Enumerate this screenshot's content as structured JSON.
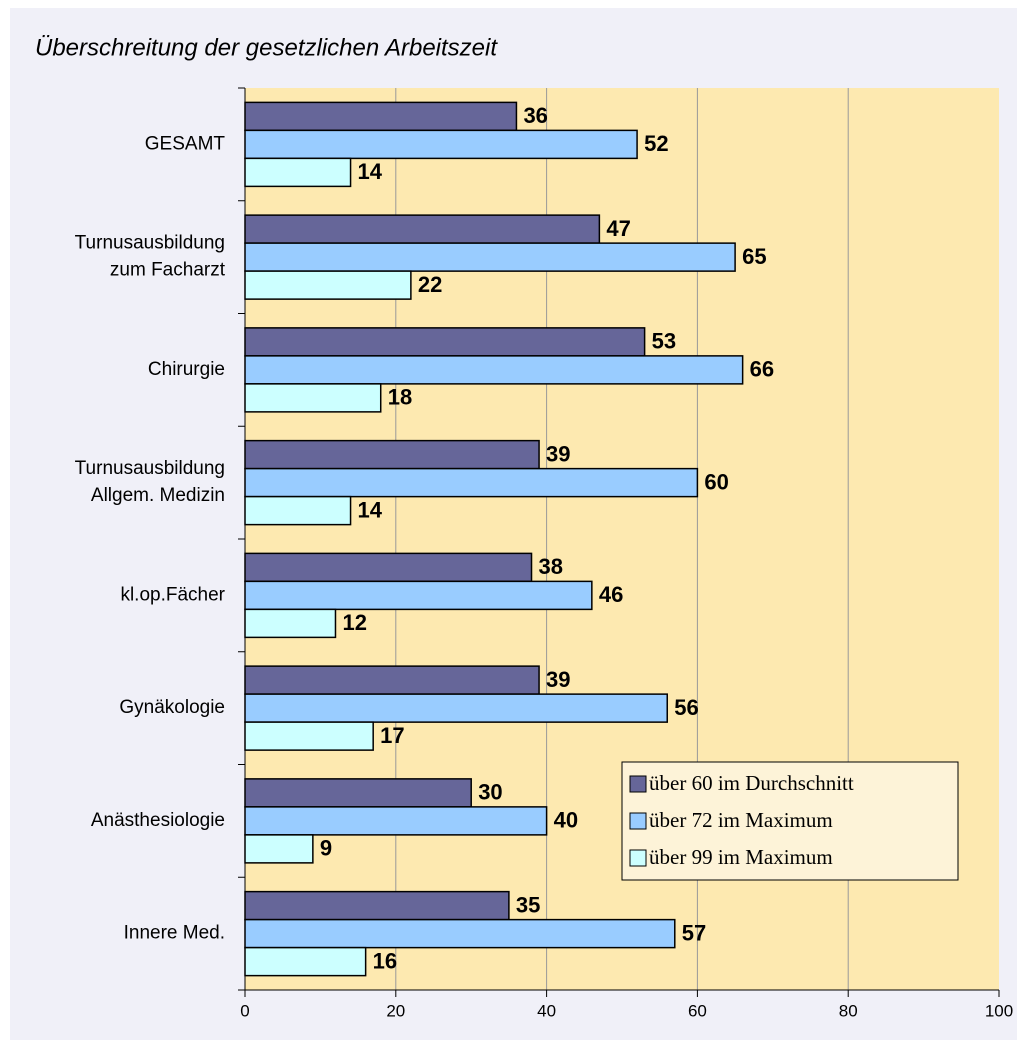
{
  "chart_data": {
    "type": "bar",
    "orientation": "horizontal",
    "title": "Überschreitung der gesetzlichen Arbeitszeit",
    "categories": [
      "GESAMT",
      "Turnusausbildung\nzum Facharzt",
      "Chirurgie",
      "Turnusausbildung\nAllgem. Medizin",
      "kl.op.Fächer",
      "Gynäkologie",
      "Anästhesiologie",
      "Innere Med."
    ],
    "series": [
      {
        "name": "über 60 im Durchschnitt",
        "color": "#666699",
        "values": [
          36,
          47,
          53,
          39,
          38,
          39,
          30,
          35
        ]
      },
      {
        "name": "über 72 im Maximum",
        "color": "#99ccff",
        "values": [
          52,
          65,
          66,
          60,
          46,
          56,
          40,
          57
        ]
      },
      {
        "name": "über 99 im Maximum",
        "color": "#ccffff",
        "values": [
          14,
          22,
          18,
          14,
          12,
          17,
          9,
          16
        ]
      }
    ],
    "xlim": [
      0,
      100
    ],
    "xticks": [
      0,
      20,
      40,
      60,
      80,
      100
    ],
    "grid": true,
    "legend": "lower right",
    "plot_background": "#fde9b0",
    "background": "#f0f0f8"
  }
}
